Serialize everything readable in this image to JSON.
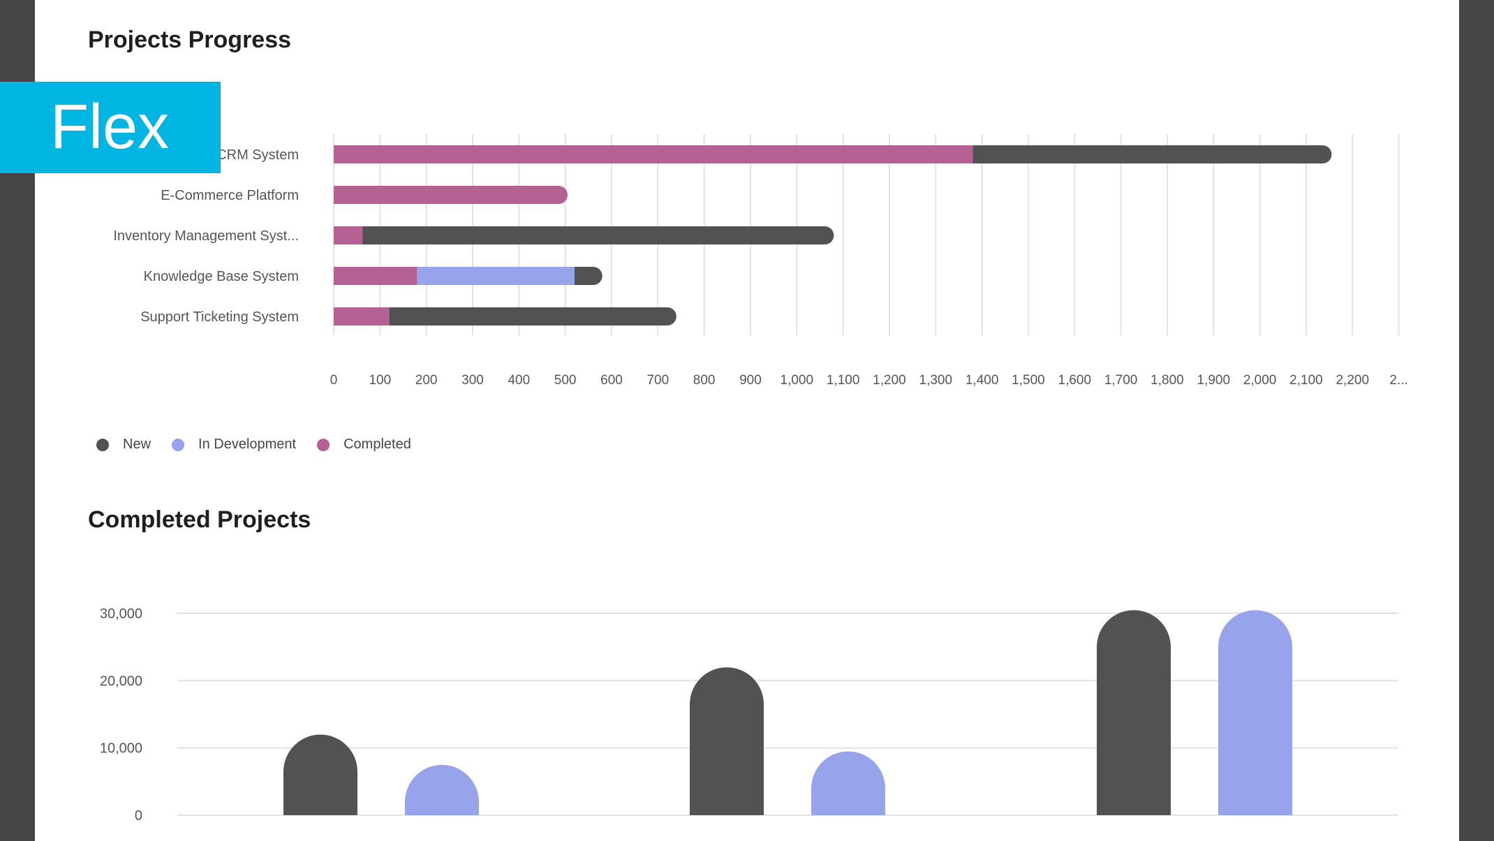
{
  "badge": {
    "label": "Flex"
  },
  "colors": {
    "new": "#525252",
    "in_development": "#97a4eb",
    "completed": "#b56194",
    "grid": "#e2e2e2",
    "frame": "#454545",
    "accent": "#00b5e2"
  },
  "chart_data": [
    {
      "type": "bar",
      "orientation": "horizontal",
      "stacked": true,
      "title": "Projects Progress",
      "categories": [
        "CRM System",
        "E-Commerce Platform",
        "Inventory Management Syst...",
        "Knowledge Base System",
        "Support Ticketing System"
      ],
      "series": [
        {
          "name": "Completed",
          "color": "#b56194",
          "values": [
            1380,
            505,
            62,
            180,
            120
          ]
        },
        {
          "name": "In Development",
          "color": "#97a4eb",
          "values": [
            0,
            0,
            0,
            340,
            0
          ]
        },
        {
          "name": "New",
          "color": "#525252",
          "values": [
            775,
            0,
            1018,
            60,
            620
          ]
        }
      ],
      "xlim": [
        0,
        2300
      ],
      "xticks": [
        "0",
        "100",
        "200",
        "300",
        "400",
        "500",
        "600",
        "700",
        "800",
        "900",
        "1,000",
        "1,100",
        "1,200",
        "1,300",
        "1,400",
        "1,500",
        "1,600",
        "1,700",
        "1,800",
        "1,900",
        "2,000",
        "2,100",
        "2,200",
        "2..."
      ],
      "grid": true,
      "legend": "bottom-left",
      "legend_items": [
        {
          "name": "New",
          "color": "#525252"
        },
        {
          "name": "In Development",
          "color": "#97a4eb"
        },
        {
          "name": "Completed",
          "color": "#b56194"
        }
      ]
    },
    {
      "type": "bar",
      "title": "Completed Projects",
      "groups": 3,
      "series": [
        {
          "color": "#525252",
          "values": [
            10000,
            20000,
            28500
          ]
        },
        {
          "color": "#97a4eb",
          "values": [
            5500,
            7500,
            28500
          ]
        }
      ],
      "ylim": [
        0,
        30000
      ],
      "yticks": [
        "0",
        "10,000",
        "20,000",
        "30,000"
      ],
      "grid": true
    }
  ]
}
